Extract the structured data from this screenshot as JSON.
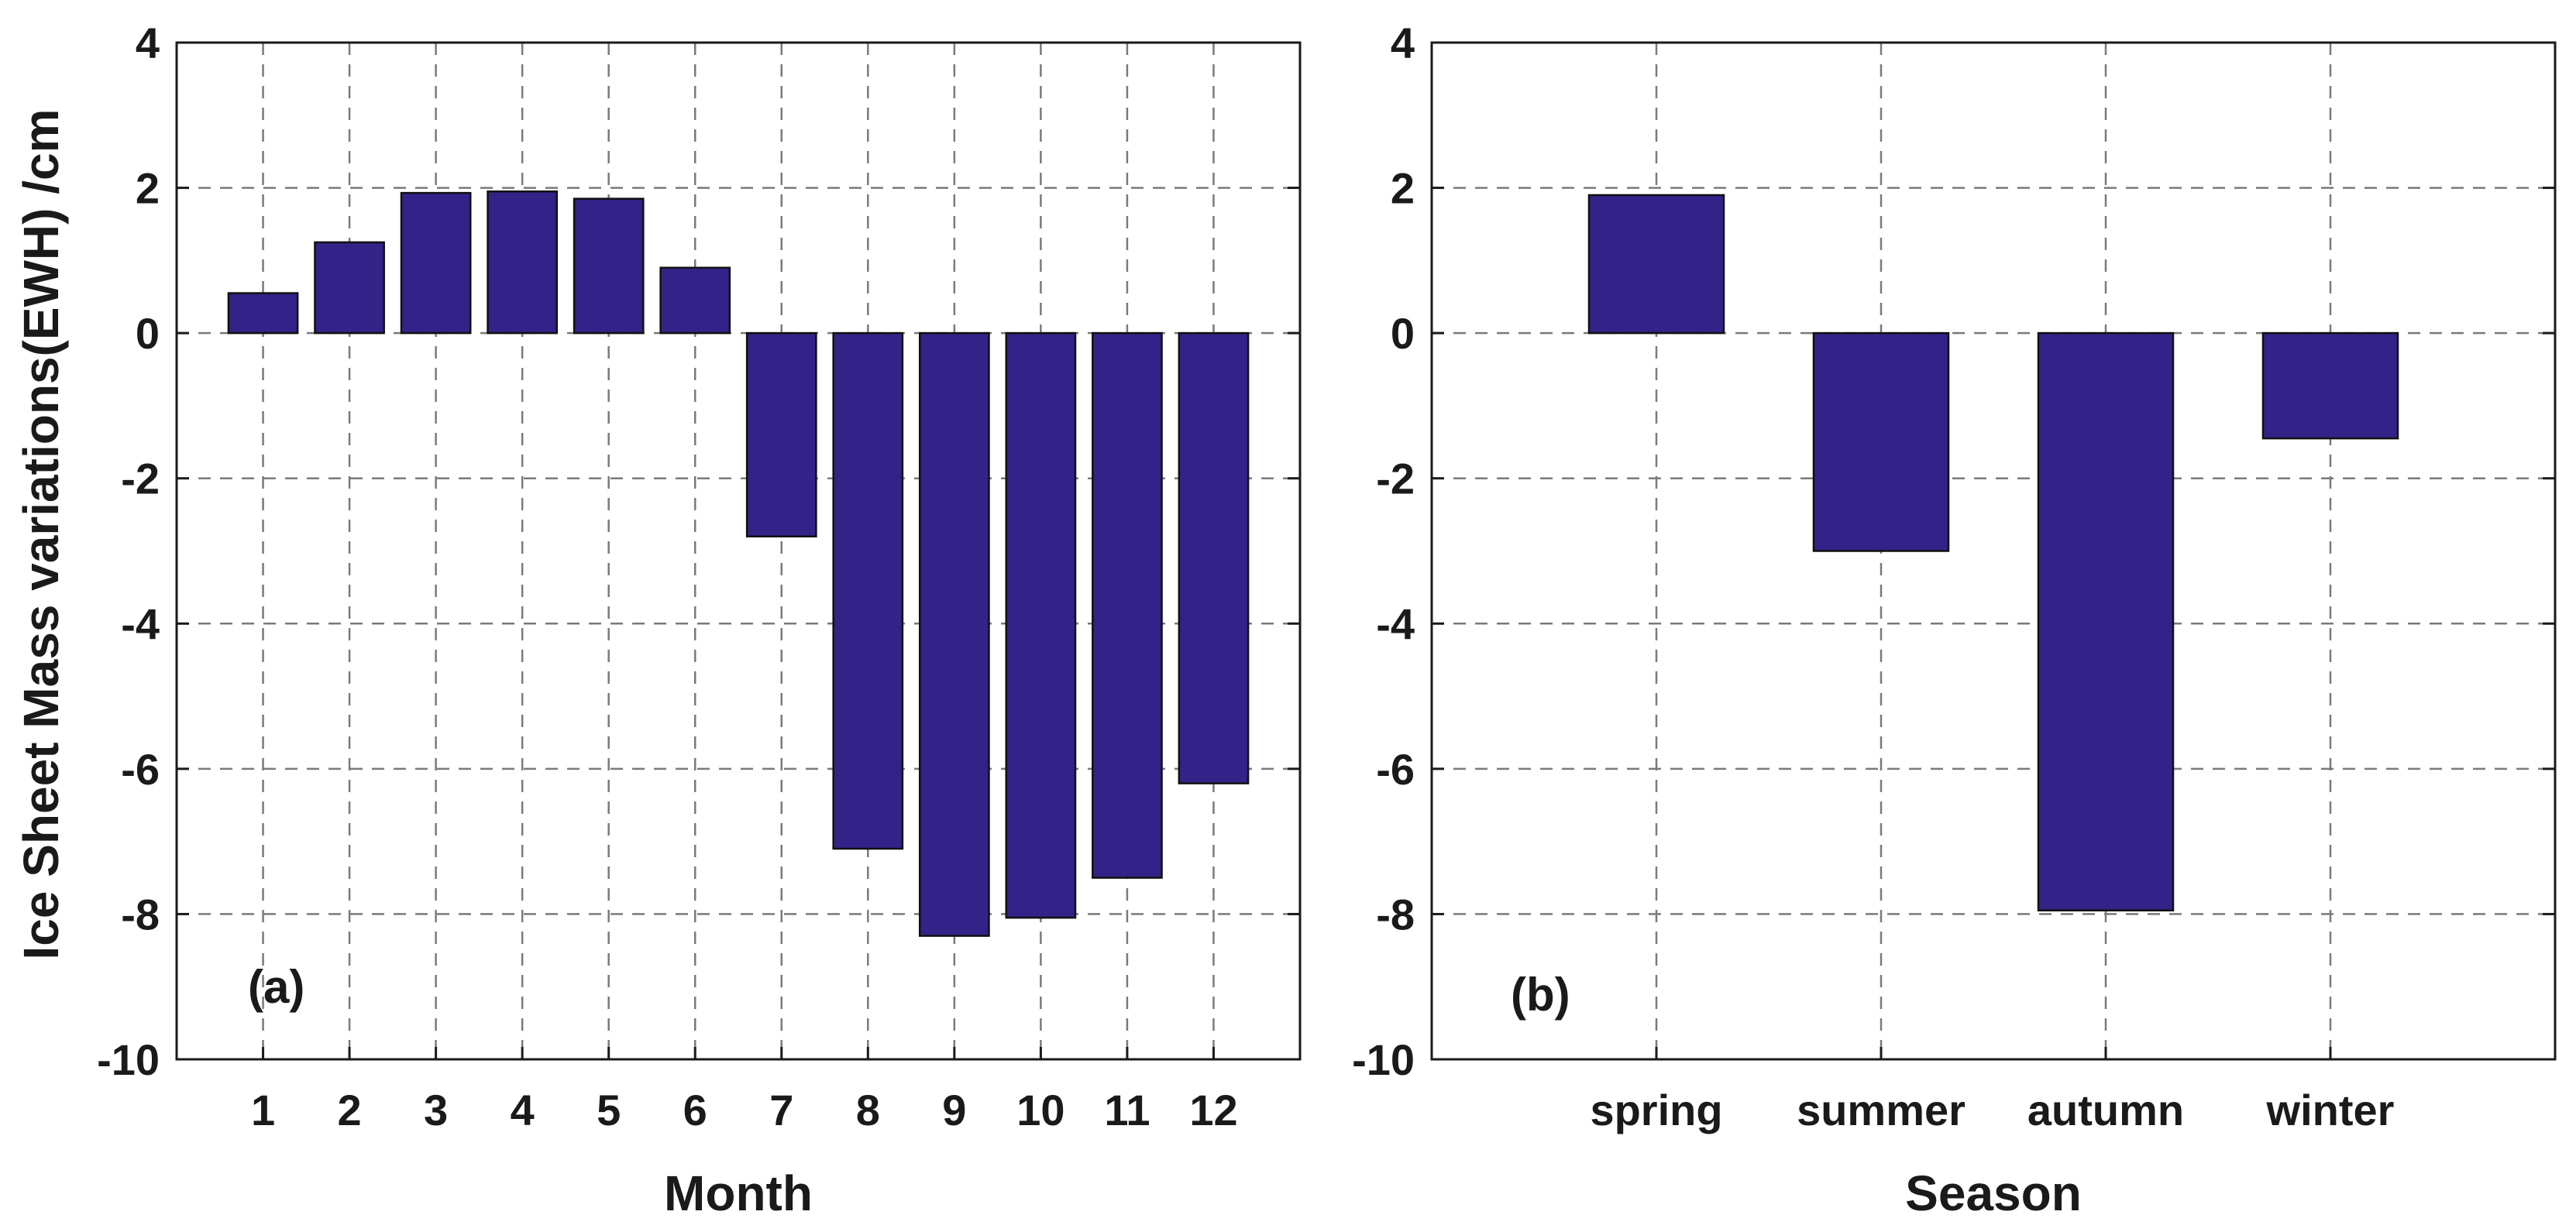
{
  "figure": {
    "shared_ylabel": "Ice Sheet Mass variations(EWH)  /cm"
  },
  "chart_data": [
    {
      "type": "bar",
      "panel_label": "(a)",
      "xlabel": "Month",
      "ylabel": "Ice Sheet Mass variations(EWH)  /cm",
      "categories": [
        "1",
        "2",
        "3",
        "4",
        "5",
        "6",
        "7",
        "8",
        "9",
        "10",
        "11",
        "12"
      ],
      "values": [
        0.55,
        1.25,
        1.93,
        1.95,
        1.85,
        0.9,
        -2.8,
        -7.1,
        -8.3,
        -8.05,
        -7.5,
        -6.2
      ],
      "ylim": [
        -10,
        4
      ],
      "yticks": [
        4,
        2,
        0,
        -2,
        -4,
        -6,
        -8,
        -10
      ],
      "grid": true,
      "bar_color": "#332288"
    },
    {
      "type": "bar",
      "panel_label": "(b)",
      "xlabel": "Season",
      "ylabel": "",
      "categories": [
        "spring",
        "summer",
        "autumn",
        "winter"
      ],
      "values": [
        1.9,
        -3.0,
        -7.95,
        -1.45
      ],
      "ylim": [
        -10,
        4
      ],
      "yticks": [
        4,
        2,
        0,
        -2,
        -4,
        -6,
        -8,
        -10
      ],
      "grid": true,
      "bar_color": "#332288"
    }
  ]
}
